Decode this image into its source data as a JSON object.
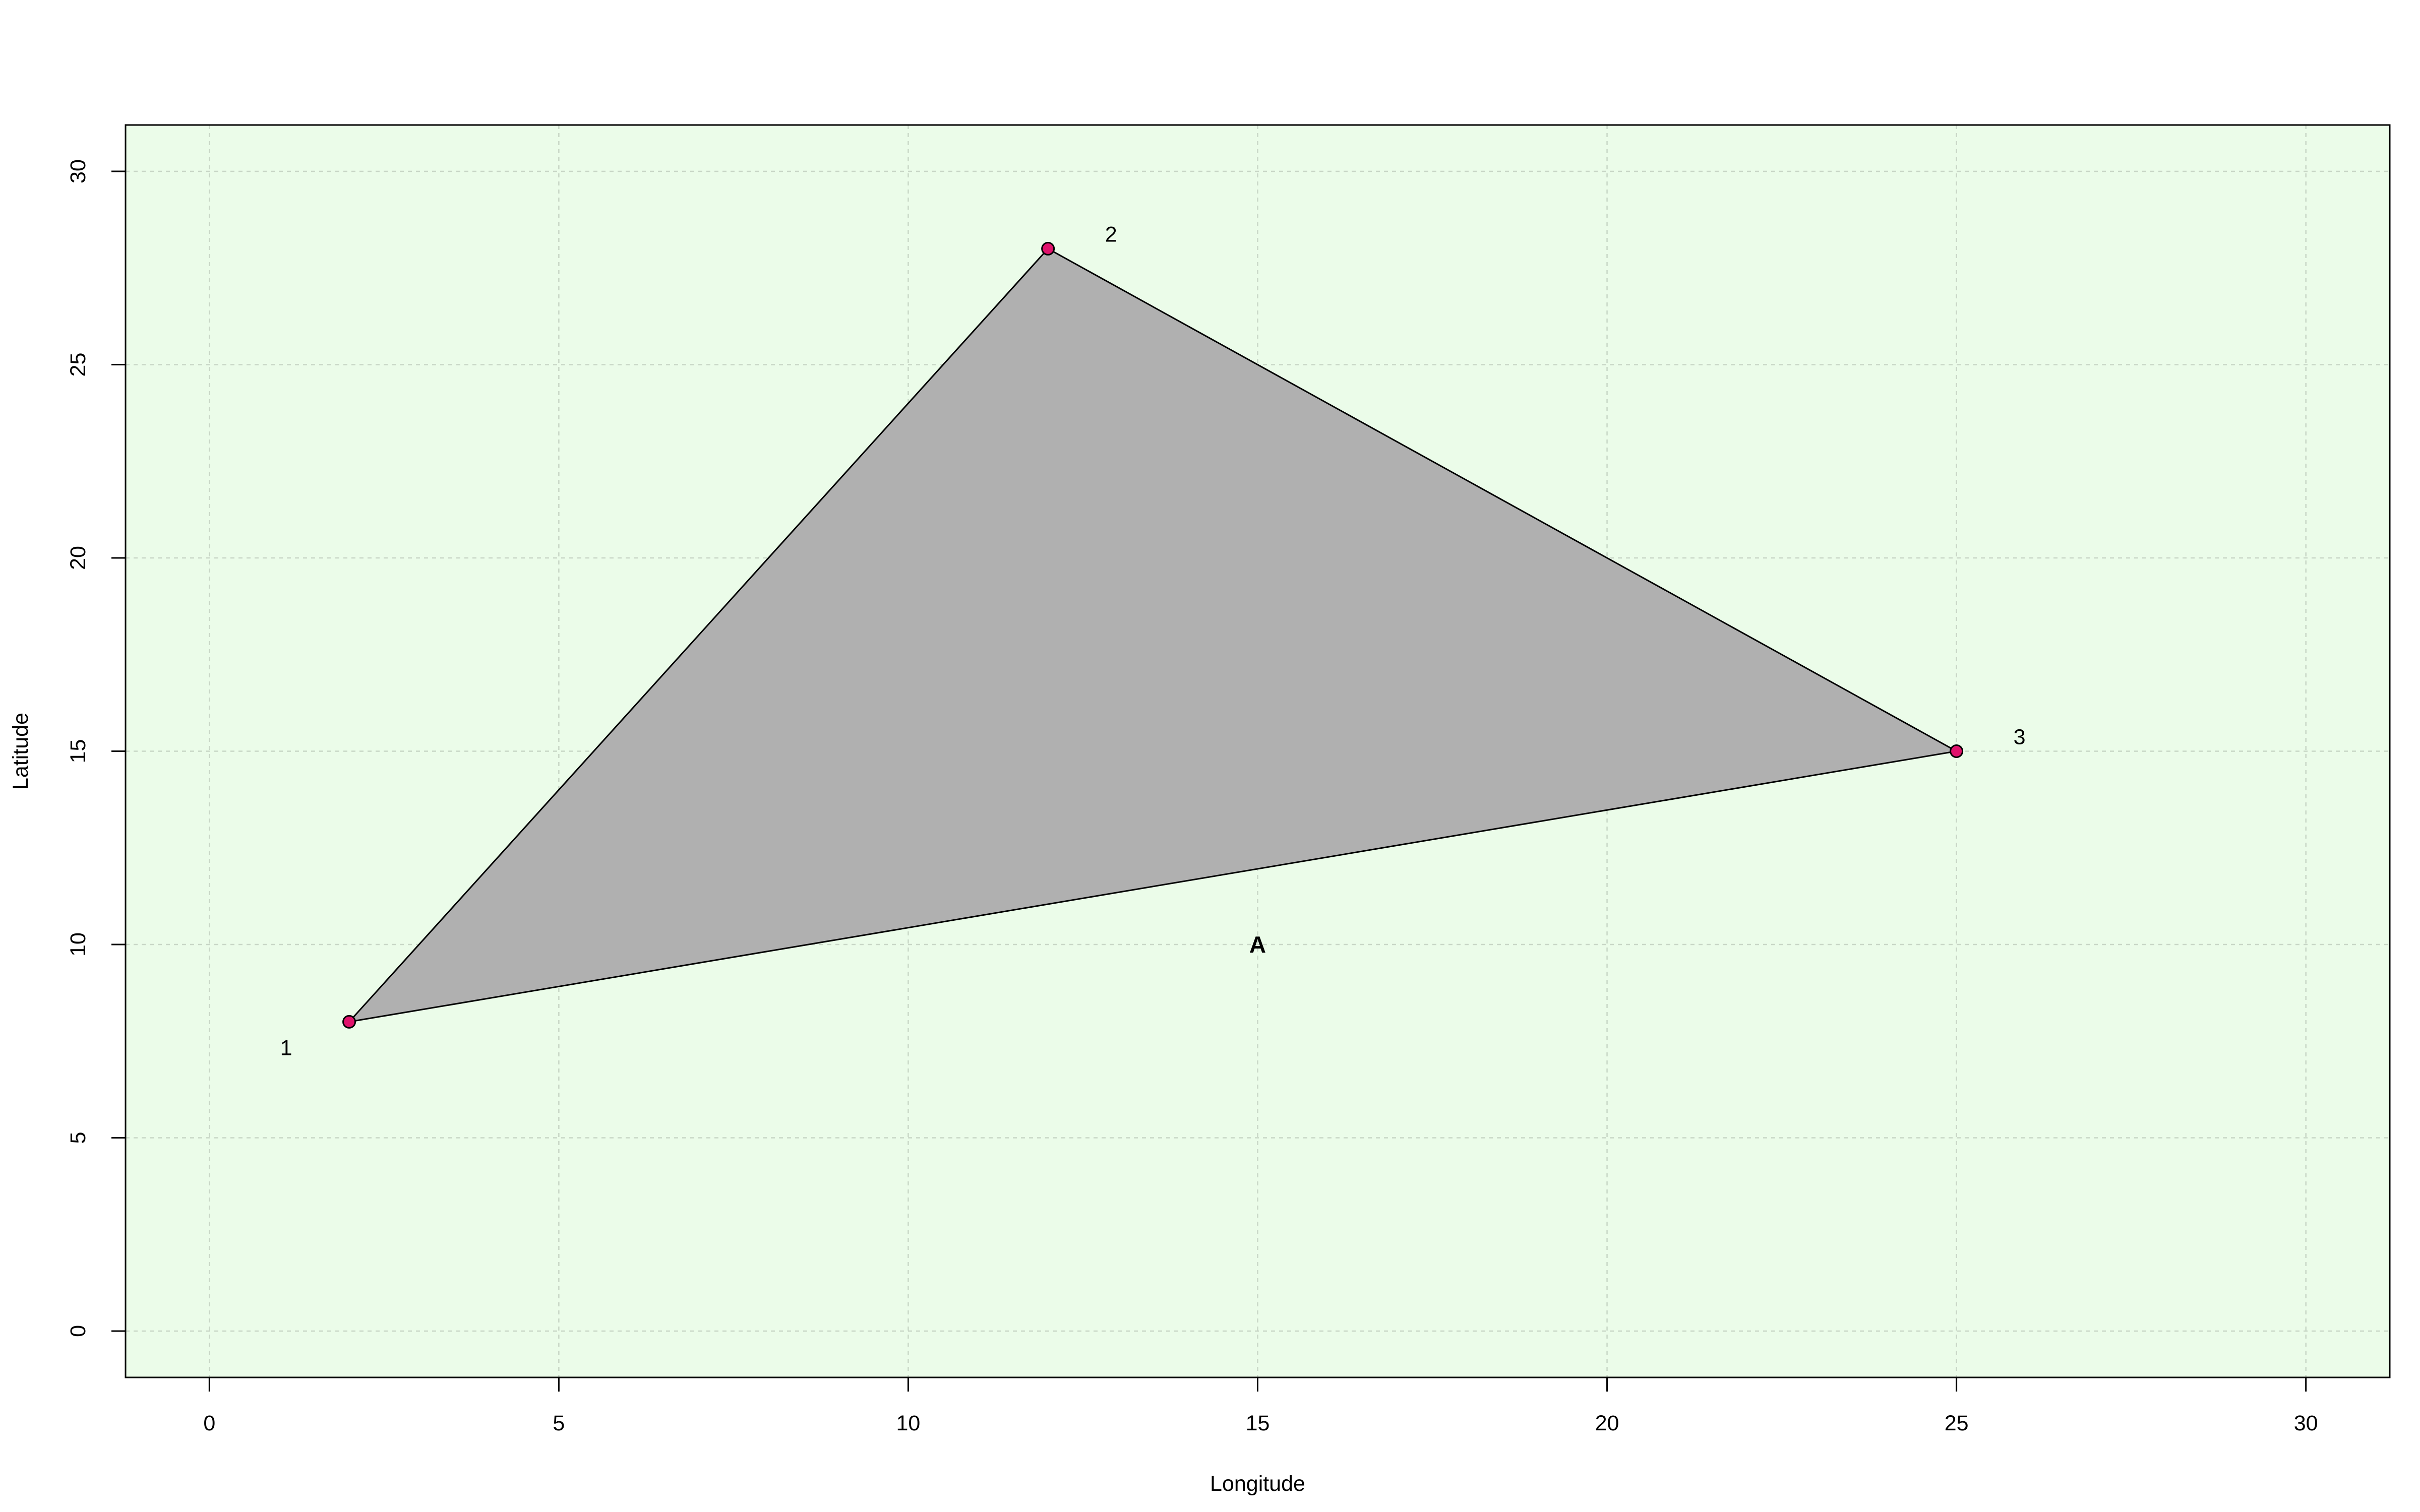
{
  "chart_data": {
    "type": "scatter",
    "title": "",
    "xlabel": "Longitude",
    "ylabel": "Latitude",
    "xlim": [
      -1.2,
      31.2
    ],
    "ylim": [
      -1.2,
      31.2
    ],
    "x_ticks": [
      0,
      5,
      10,
      15,
      20,
      25,
      30
    ],
    "y_ticks": [
      0,
      5,
      10,
      15,
      20,
      25,
      30
    ],
    "x_tick_labels": [
      "0",
      "5",
      "10",
      "15",
      "20",
      "25",
      "30"
    ],
    "y_tick_labels": [
      "0",
      "5",
      "10",
      "15",
      "20",
      "25",
      "30"
    ],
    "grid": true,
    "polygon": {
      "vertices": [
        {
          "x": 2,
          "y": 8
        },
        {
          "x": 12,
          "y": 28
        },
        {
          "x": 25,
          "y": 15
        }
      ],
      "fill": "#b0b0b0",
      "stroke": "#000000"
    },
    "series": [
      {
        "points": [
          {
            "x": 2,
            "y": 8,
            "label": "1"
          },
          {
            "x": 12,
            "y": 28,
            "label": "2"
          },
          {
            "x": 25,
            "y": 15,
            "label": "3"
          }
        ]
      }
    ],
    "annotations": [
      {
        "text": "A",
        "x": 15,
        "y": 10,
        "bold": true
      }
    ]
  },
  "colors": {
    "plot_background": "#ebfce9",
    "grid": "#c8d6c6",
    "point_fill": "#e0136c",
    "point_stroke": "#000000",
    "polygon_fill": "#b0b0b0",
    "axis": "#000000"
  }
}
